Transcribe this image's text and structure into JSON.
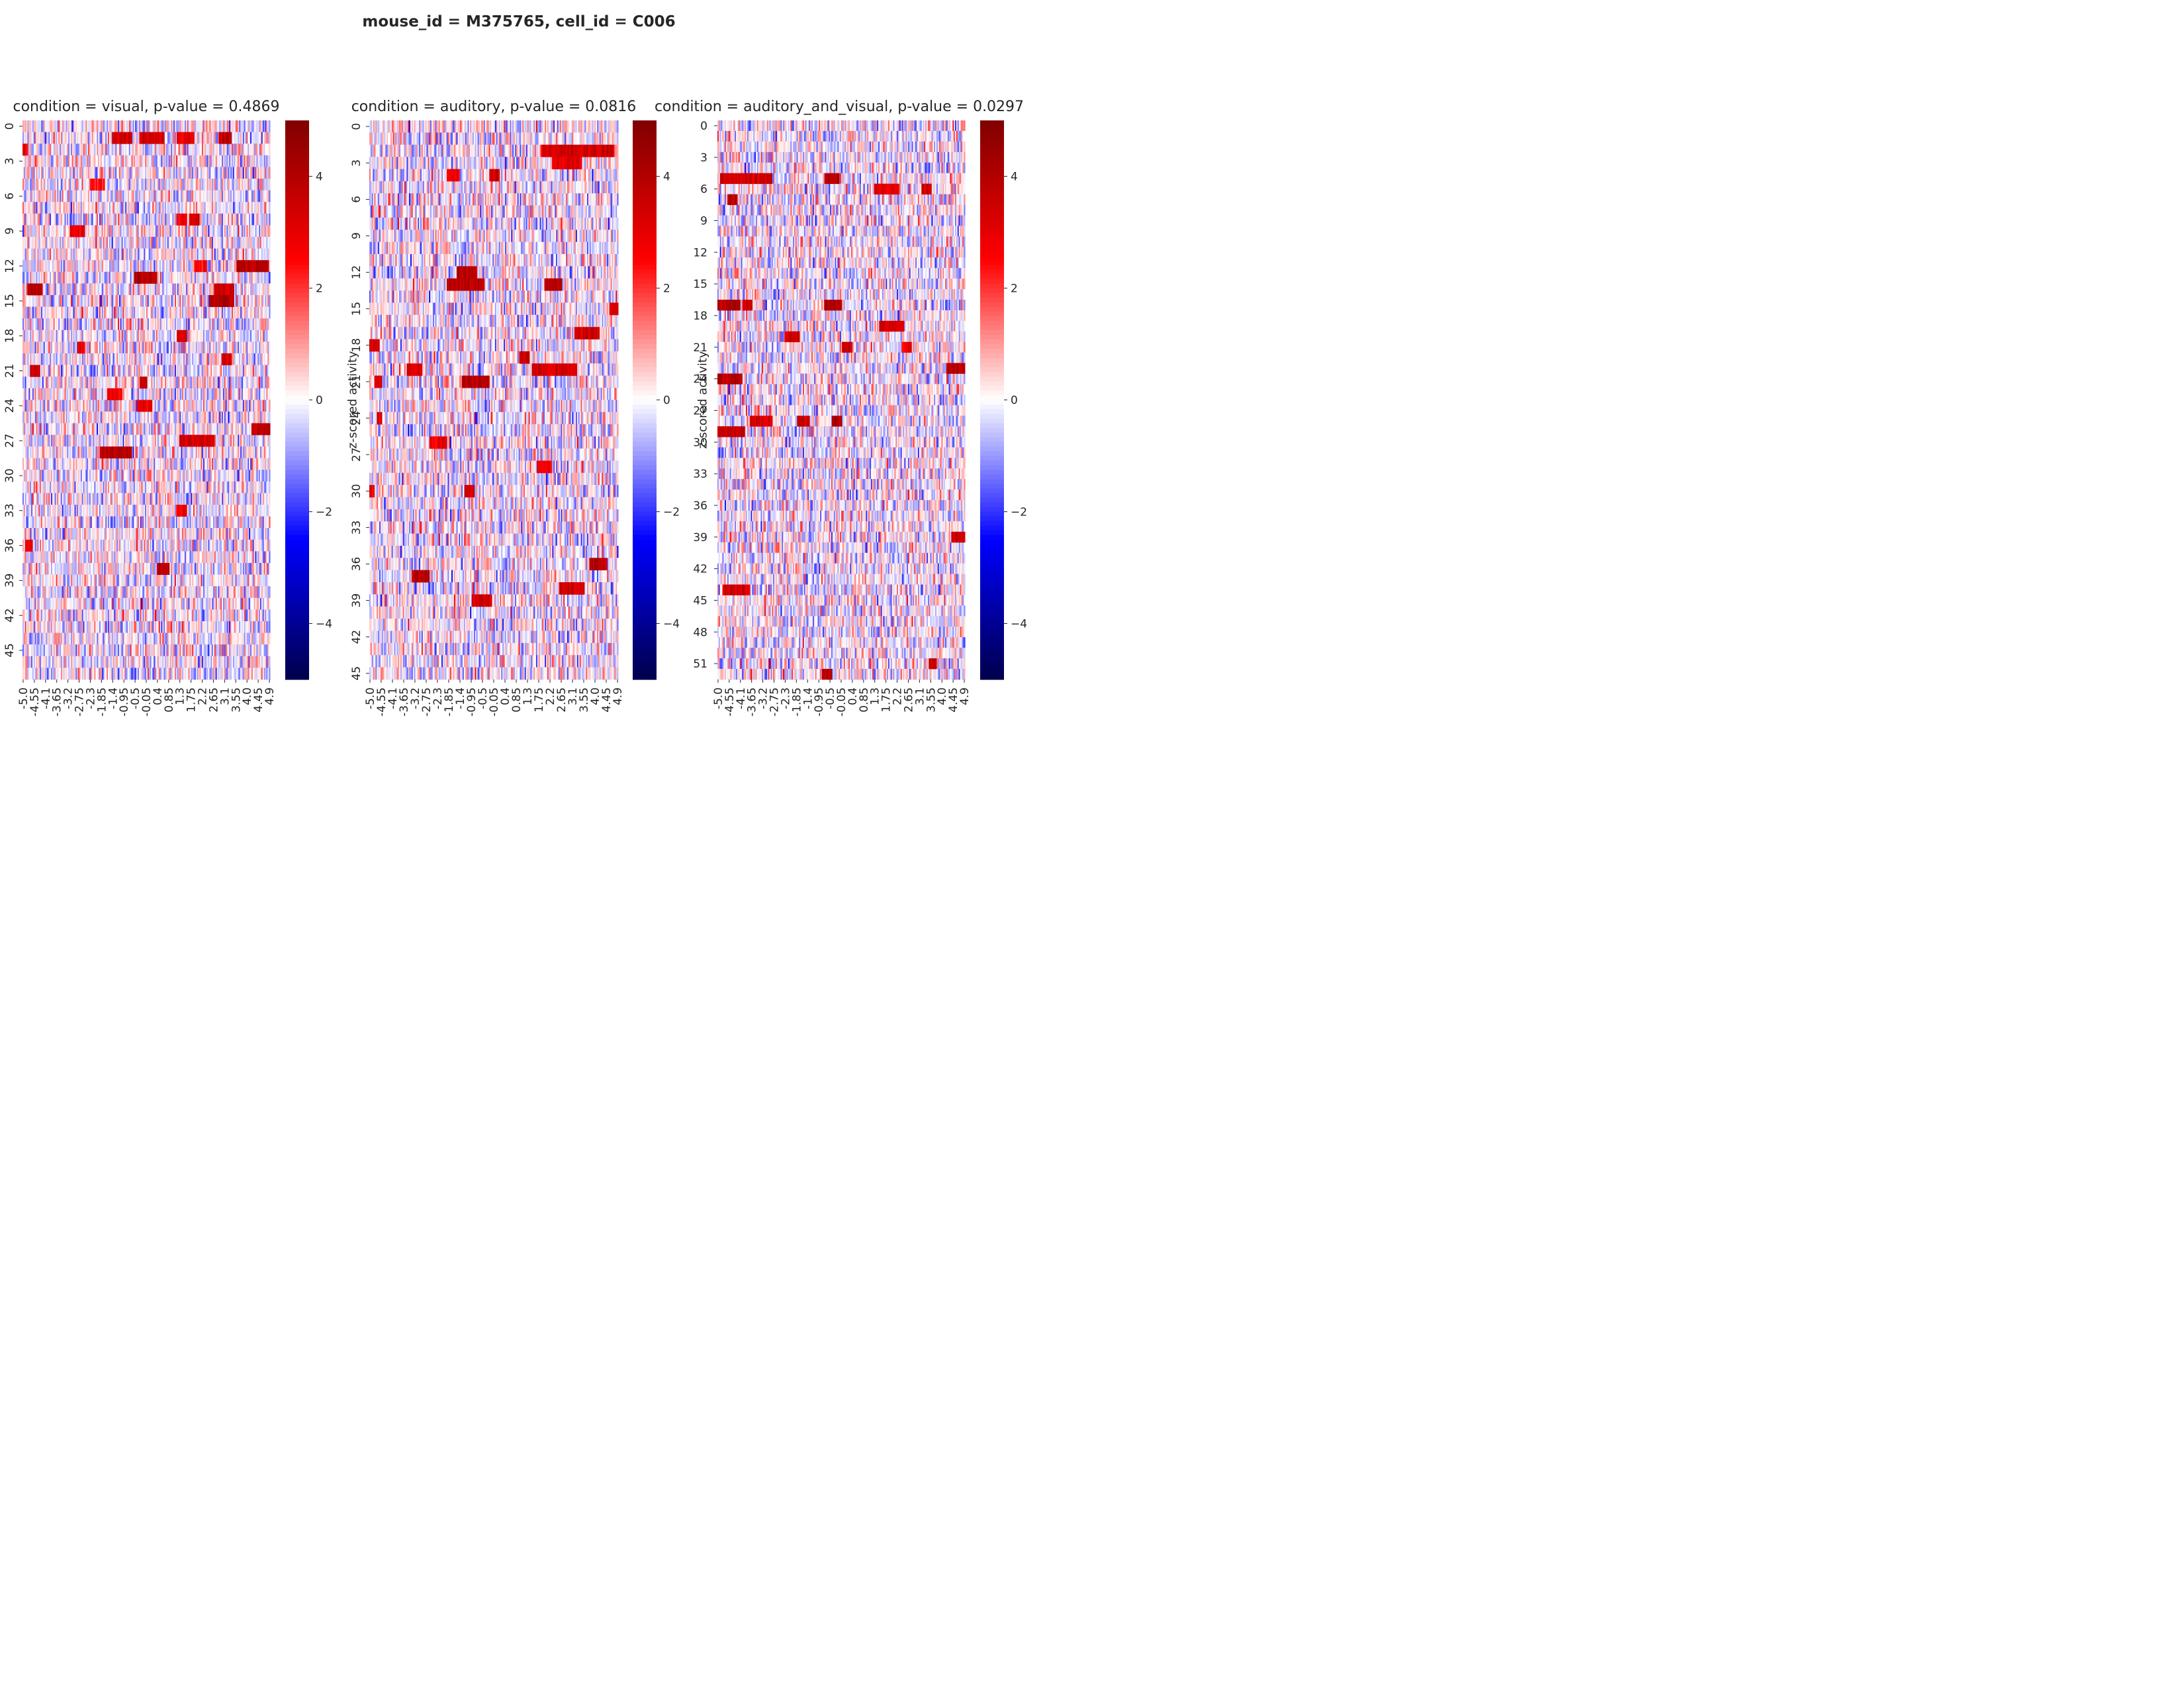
{
  "figure": {
    "suptitle": "mouse_id = M375765, cell_id = C006"
  },
  "colors": {
    "low": "#00004c",
    "mid_low": "#0000ff",
    "zero": "#ffffff",
    "mid_high": "#ff0000",
    "high": "#800000"
  },
  "chart_data": [
    {
      "type": "heatmap",
      "title": "condition = visual, p-value = 0.4869",
      "ylabel": "",
      "n_rows": 48,
      "y_ticks": [
        0,
        3,
        6,
        9,
        12,
        15,
        18,
        21,
        24,
        27,
        30,
        33,
        36,
        39,
        42,
        45
      ],
      "x_ticks": [
        "-5.0",
        "-4.55",
        "-4.1",
        "-3.65",
        "-3.2",
        "-2.75",
        "-2.3",
        "-1.85",
        "-1.4",
        "-0.95",
        "-0.5",
        "-0.05",
        "0.4",
        "0.85",
        "1.3",
        "1.75",
        "2.2",
        "2.65",
        "3.1",
        "3.55",
        "4.0",
        "4.45",
        "4.9"
      ],
      "x_range": [
        -5.0,
        4.95
      ],
      "colorbar": {
        "vmin": -5,
        "vmax": 5,
        "ticks": [
          -4,
          -2,
          0,
          2,
          4
        ]
      },
      "hot_spots": [
        {
          "row": 1,
          "x0": -1.4,
          "x1": -0.6,
          "v": 4
        },
        {
          "row": 1,
          "x0": -0.3,
          "x1": 0.7,
          "v": 4
        },
        {
          "row": 1,
          "x0": 1.2,
          "x1": 1.9,
          "v": 3.5
        },
        {
          "row": 1,
          "x0": 2.9,
          "x1": 3.4,
          "v": 4.5
        },
        {
          "row": 2,
          "x0": -5.0,
          "x1": -4.8,
          "v": 3.5
        },
        {
          "row": 5,
          "x0": -2.3,
          "x1": -1.7,
          "v": 3
        },
        {
          "row": 8,
          "x0": 1.2,
          "x1": 1.6,
          "v": 3.5
        },
        {
          "row": 8,
          "x0": 1.7,
          "x1": 2.1,
          "v": 4
        },
        {
          "row": 9,
          "x0": -3.1,
          "x1": -2.5,
          "v": 3.5
        },
        {
          "row": 12,
          "x0": 3.6,
          "x1": 4.9,
          "v": 4.5
        },
        {
          "row": 12,
          "x0": 1.9,
          "x1": 2.4,
          "v": 3
        },
        {
          "row": 13,
          "x0": -0.5,
          "x1": 0.4,
          "v": 4.5
        },
        {
          "row": 14,
          "x0": -4.8,
          "x1": -4.2,
          "v": 4.5
        },
        {
          "row": 14,
          "x0": 2.7,
          "x1": 3.5,
          "v": 4
        },
        {
          "row": 15,
          "x0": 2.5,
          "x1": 3.5,
          "v": 4.5
        },
        {
          "row": 18,
          "x0": 1.2,
          "x1": 1.6,
          "v": 4
        },
        {
          "row": 19,
          "x0": -2.8,
          "x1": -2.5,
          "v": 3.5
        },
        {
          "row": 20,
          "x0": 3.0,
          "x1": 3.4,
          "v": 4
        },
        {
          "row": 21,
          "x0": -4.7,
          "x1": -4.3,
          "v": 4
        },
        {
          "row": 22,
          "x0": -0.3,
          "x1": 0.0,
          "v": 4
        },
        {
          "row": 23,
          "x0": -1.6,
          "x1": -1.0,
          "v": 3.5
        },
        {
          "row": 24,
          "x0": -0.4,
          "x1": 0.2,
          "v": 3.5
        },
        {
          "row": 26,
          "x0": 4.2,
          "x1": 4.95,
          "v": 4.5
        },
        {
          "row": 27,
          "x0": 1.3,
          "x1": 2.7,
          "v": 4
        },
        {
          "row": 28,
          "x0": -1.9,
          "x1": -0.6,
          "v": 4.5
        },
        {
          "row": 33,
          "x0": 1.2,
          "x1": 1.6,
          "v": 3.5
        },
        {
          "row": 36,
          "x0": -4.9,
          "x1": -4.6,
          "v": 3.5
        },
        {
          "row": 38,
          "x0": 0.4,
          "x1": 0.9,
          "v": 4.5
        }
      ]
    },
    {
      "type": "heatmap",
      "title": "condition = auditory, p-value = 0.0816",
      "ylabel": "z-scored activity",
      "n_rows": 46,
      "y_ticks": [
        0,
        3,
        6,
        9,
        12,
        15,
        18,
        21,
        24,
        27,
        30,
        33,
        36,
        39,
        42,
        45
      ],
      "x_ticks": [
        "-5.0",
        "-4.55",
        "-4.1",
        "-3.65",
        "-3.2",
        "-2.75",
        "-2.3",
        "-1.85",
        "-1.4",
        "-0.95",
        "-0.5",
        "-0.05",
        "0.4",
        "0.85",
        "1.3",
        "1.75",
        "2.2",
        "2.65",
        "3.1",
        "3.55",
        "4.0",
        "4.45",
        "4.9"
      ],
      "x_range": [
        -5.0,
        4.95
      ],
      "colorbar": {
        "vmin": -5,
        "vmax": 5,
        "ticks": [
          -4,
          -2,
          0,
          2,
          4
        ]
      },
      "hot_spots": [
        {
          "row": 2,
          "x0": 1.9,
          "x1": 4.8,
          "v": 4
        },
        {
          "row": 3,
          "x0": 2.3,
          "x1": 3.5,
          "v": 3.5
        },
        {
          "row": 4,
          "x0": -1.9,
          "x1": -1.4,
          "v": 3.5
        },
        {
          "row": 4,
          "x0": -0.2,
          "x1": 0.2,
          "v": 4
        },
        {
          "row": 12,
          "x0": -1.5,
          "x1": -0.7,
          "v": 4.5
        },
        {
          "row": 13,
          "x0": -1.9,
          "x1": -0.4,
          "v": 4.5
        },
        {
          "row": 13,
          "x0": 2.0,
          "x1": 2.7,
          "v": 4.5
        },
        {
          "row": 15,
          "x0": 4.6,
          "x1": 4.95,
          "v": 4
        },
        {
          "row": 17,
          "x0": 3.2,
          "x1": 4.2,
          "v": 4
        },
        {
          "row": 18,
          "x0": -5.0,
          "x1": -4.6,
          "v": 4
        },
        {
          "row": 19,
          "x0": 1.0,
          "x1": 1.4,
          "v": 4
        },
        {
          "row": 20,
          "x0": -3.5,
          "x1": -2.9,
          "v": 4
        },
        {
          "row": 20,
          "x0": 1.5,
          "x1": 3.3,
          "v": 4
        },
        {
          "row": 21,
          "x0": -1.3,
          "x1": -0.2,
          "v": 4.5
        },
        {
          "row": 21,
          "x0": -4.8,
          "x1": -4.5,
          "v": 3.5
        },
        {
          "row": 24,
          "x0": -4.7,
          "x1": -4.5,
          "v": 3.5
        },
        {
          "row": 26,
          "x0": -2.6,
          "x1": -1.9,
          "v": 3.5
        },
        {
          "row": 28,
          "x0": 1.7,
          "x1": 2.3,
          "v": 3.5
        },
        {
          "row": 30,
          "x0": -1.2,
          "x1": -0.8,
          "v": 4
        },
        {
          "row": 30,
          "x0": -5.0,
          "x1": -4.8,
          "v": 3.5
        },
        {
          "row": 36,
          "x0": 3.8,
          "x1": 4.5,
          "v": 4.5
        },
        {
          "row": 37,
          "x0": -3.3,
          "x1": -2.6,
          "v": 4.5
        },
        {
          "row": 38,
          "x0": 2.6,
          "x1": 3.6,
          "v": 4
        },
        {
          "row": 39,
          "x0": -0.9,
          "x1": -0.1,
          "v": 4
        }
      ]
    },
    {
      "type": "heatmap",
      "title": "condition = auditory_and_visual, p-value = 0.0297",
      "ylabel": "z-scored activity",
      "n_rows": 53,
      "y_ticks": [
        0,
        3,
        6,
        9,
        12,
        15,
        18,
        21,
        24,
        27,
        30,
        33,
        36,
        39,
        42,
        45,
        48,
        51
      ],
      "x_ticks": [
        "-5.0",
        "-4.55",
        "-4.1",
        "-3.65",
        "-3.2",
        "-2.75",
        "-2.3",
        "-1.85",
        "-1.4",
        "-0.95",
        "-0.5",
        "-0.05",
        "0.4",
        "0.85",
        "1.3",
        "1.75",
        "2.2",
        "2.65",
        "3.1",
        "3.55",
        "4.0",
        "4.45",
        "4.9"
      ],
      "x_range": [
        -5.0,
        4.95
      ],
      "colorbar": {
        "vmin": -5,
        "vmax": 5,
        "ticks": [
          -4,
          -2,
          0,
          2,
          4
        ]
      },
      "hot_spots": [
        {
          "row": 5,
          "x0": -4.9,
          "x1": -2.8,
          "v": 4
        },
        {
          "row": 5,
          "x0": -0.7,
          "x1": -0.1,
          "v": 4.5
        },
        {
          "row": 6,
          "x0": 1.3,
          "x1": 2.3,
          "v": 3.5
        },
        {
          "row": 6,
          "x0": 3.2,
          "x1": 3.6,
          "v": 4
        },
        {
          "row": 7,
          "x0": -4.6,
          "x1": -4.2,
          "v": 4.5
        },
        {
          "row": 17,
          "x0": -5.0,
          "x1": -4.1,
          "v": 4.5
        },
        {
          "row": 17,
          "x0": -4.0,
          "x1": -3.6,
          "v": 4
        },
        {
          "row": 17,
          "x0": -0.7,
          "x1": 0.0,
          "v": 4.5
        },
        {
          "row": 19,
          "x0": 1.5,
          "x1": 2.5,
          "v": 4
        },
        {
          "row": 20,
          "x0": -2.3,
          "x1": -1.7,
          "v": 4
        },
        {
          "row": 21,
          "x0": 0.0,
          "x1": 0.4,
          "v": 4
        },
        {
          "row": 21,
          "x0": 2.4,
          "x1": 2.8,
          "v": 3.5
        },
        {
          "row": 23,
          "x0": 4.2,
          "x1": 4.95,
          "v": 4.5
        },
        {
          "row": 24,
          "x0": -5.0,
          "x1": -4.0,
          "v": 4.5
        },
        {
          "row": 28,
          "x0": -3.7,
          "x1": -2.8,
          "v": 4
        },
        {
          "row": 28,
          "x0": -1.8,
          "x1": -1.3,
          "v": 4
        },
        {
          "row": 28,
          "x0": -0.4,
          "x1": 0.0,
          "v": 4.5
        },
        {
          "row": 29,
          "x0": -5.0,
          "x1": -3.9,
          "v": 4.5
        },
        {
          "row": 39,
          "x0": 4.4,
          "x1": 4.95,
          "v": 4
        },
        {
          "row": 44,
          "x0": -4.8,
          "x1": -3.7,
          "v": 4
        },
        {
          "row": 51,
          "x0": 3.5,
          "x1": 3.8,
          "v": 4.5
        },
        {
          "row": 52,
          "x0": -0.8,
          "x1": -0.4,
          "v": 4.5
        }
      ]
    }
  ]
}
